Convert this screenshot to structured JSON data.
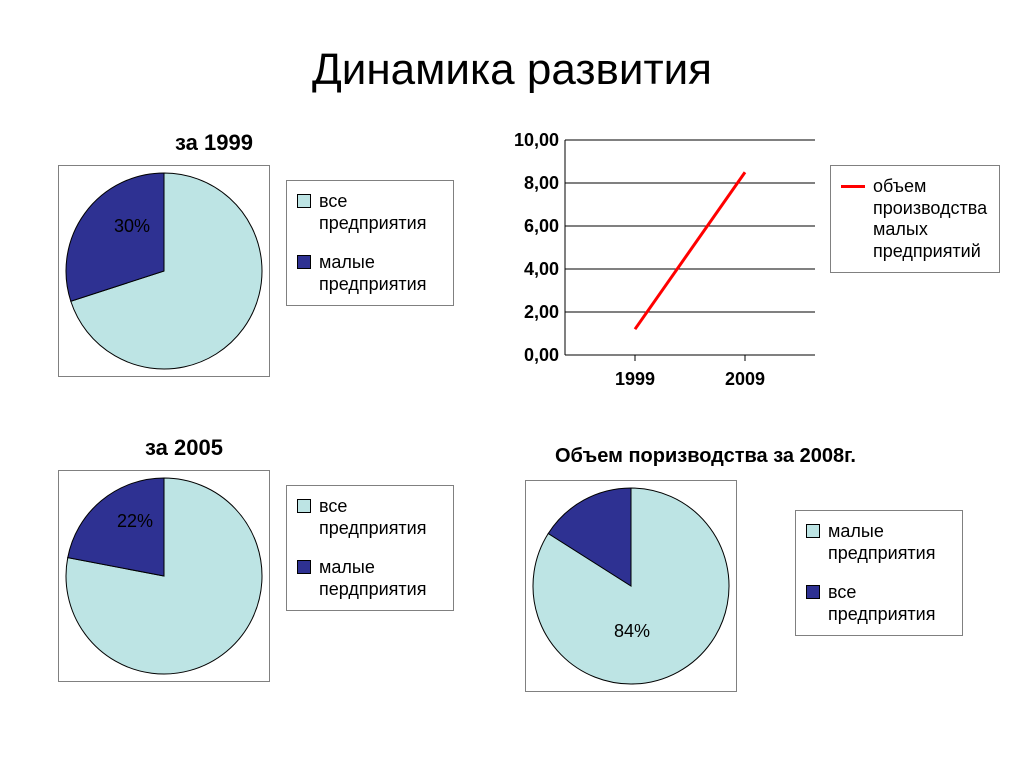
{
  "title": "Динамика развития",
  "colors": {
    "light": "#bde4e4",
    "dark": "#2e3192",
    "line": "#ff0000",
    "border": "#808080",
    "axis": "#000000",
    "grid": "#000000",
    "bg": "#ffffff",
    "text": "#000000"
  },
  "pie1999": {
    "title": "за 1999",
    "type": "pie",
    "slices": [
      {
        "label": "все предприятия",
        "value": 70,
        "color": "#bde4e4"
      },
      {
        "label": "малые предприятия",
        "value": 30,
        "color": "#2e3192",
        "show_label": "30%"
      }
    ]
  },
  "pie2005": {
    "title": "за 2005",
    "type": "pie",
    "slices": [
      {
        "label": "все предприятия",
        "value": 78,
        "color": "#bde4e4"
      },
      {
        "label": "малые пердприятия",
        "value": 22,
        "color": "#2e3192",
        "show_label": "22%"
      }
    ]
  },
  "pie2008": {
    "title": "Объем поризводства за 2008г.",
    "type": "pie",
    "slices": [
      {
        "label": "малые предприятия",
        "value": 84,
        "color": "#bde4e4",
        "show_label": "84%"
      },
      {
        "label": "все предприятия",
        "value": 16,
        "color": "#2e3192"
      }
    ]
  },
  "line_chart": {
    "type": "line",
    "series_label": "объем производства малых предприятий",
    "x_labels": [
      "1999",
      "2009"
    ],
    "points": [
      {
        "x": "1999",
        "y": 1.2
      },
      {
        "x": "2009",
        "y": 8.5
      }
    ],
    "ylim": [
      0,
      10
    ],
    "ytick_step": 2,
    "ytick_labels": [
      "0,00",
      "2,00",
      "4,00",
      "6,00",
      "8,00",
      "10,00"
    ],
    "line_color": "#ff0000",
    "line_width": 3,
    "grid_color": "#000000",
    "background_color": "#ffffff",
    "label_fontsize": 18,
    "axis_font_weight": "700"
  },
  "legend1999": {
    "items": [
      {
        "color": "#bde4e4",
        "text": "все предприятия"
      },
      {
        "color": "#2e3192",
        "text": "малые предприятия"
      }
    ]
  },
  "legend2005": {
    "items": [
      {
        "color": "#bde4e4",
        "text": "все предприятия"
      },
      {
        "color": "#2e3192",
        "text": "малые пердприятия"
      }
    ]
  },
  "legend2008": {
    "items": [
      {
        "color": "#bde4e4",
        "text": "малые предприятия"
      },
      {
        "color": "#2e3192",
        "text": "все предприятия"
      }
    ]
  }
}
